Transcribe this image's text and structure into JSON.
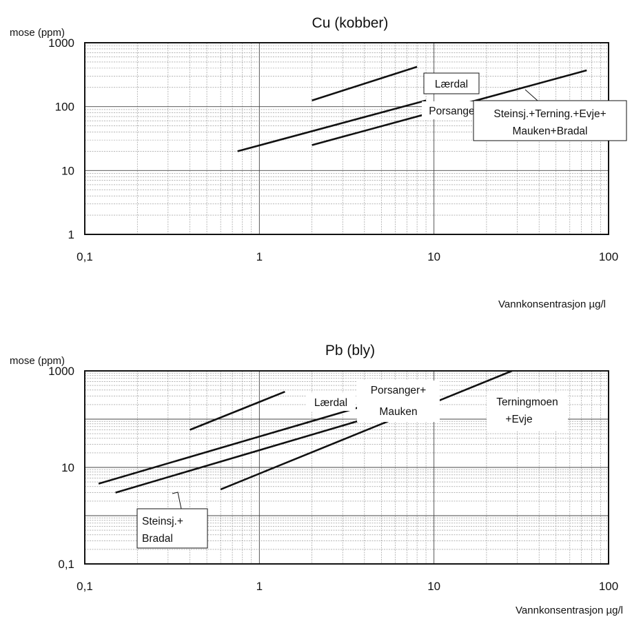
{
  "chart_data": [
    {
      "id": "cu",
      "type": "line",
      "title": "Cu (kobber)",
      "ylabel": "mose (ppm)",
      "xlabel": "Vannkonsentrasjon µg/l",
      "xscale": "log",
      "yscale": "log",
      "xlim": [
        0.1,
        100
      ],
      "ylim": [
        1,
        1000
      ],
      "xticks": [
        0.1,
        1,
        10,
        100
      ],
      "xticklabels": [
        "0,1",
        "1",
        "10",
        "100"
      ],
      "yticks": [
        1,
        10,
        100,
        1000
      ],
      "yticklabels": [
        "1",
        "10",
        "100",
        "1000"
      ],
      "grid": true,
      "series": [
        {
          "name": "Lærdal",
          "x": [
            2,
            8
          ],
          "y": [
            125,
            420
          ]
        },
        {
          "name": "Porsanger",
          "x": [
            0.75,
            9
          ],
          "y": [
            20,
            125
          ]
        },
        {
          "name": "Steinsj.+Terning.+Evje+Mauken+Bradal",
          "x": [
            2,
            75
          ],
          "y": [
            25,
            370
          ]
        }
      ],
      "annotations": [
        {
          "series": "Lærdal",
          "text": [
            "Lærdal"
          ]
        },
        {
          "series": "Porsanger",
          "text": [
            "Porsanger"
          ]
        },
        {
          "series": "Steinsj.+Terning.+Evje+Mauken+Bradal",
          "text": [
            "Steinsj.+Terning.+Evje+",
            "Mauken+Bradal"
          ]
        }
      ]
    },
    {
      "id": "pb",
      "type": "line",
      "title": "Pb (bly)",
      "ylabel": "mose (ppm)",
      "xlabel": "Vannkonsentrasjon µg/l",
      "xscale": "log",
      "yscale": "log",
      "xlim": [
        0.1,
        100
      ],
      "ylim": [
        0.1,
        1000
      ],
      "xticks": [
        0.1,
        1,
        10,
        100
      ],
      "xticklabels": [
        "0,1",
        "1",
        "10",
        "100"
      ],
      "yticks": [
        0.1,
        10,
        1000
      ],
      "yticklabels": [
        "0,1",
        "10",
        "1000"
      ],
      "grid": true,
      "series": [
        {
          "name": "Lærdal",
          "x": [
            0.4,
            1.4
          ],
          "y": [
            60,
            370
          ]
        },
        {
          "name": "Porsanger+Mauken",
          "x": [
            0.12,
            4
          ],
          "y": [
            4.6,
            190
          ]
        },
        {
          "name": "Steinsj.+Bradal",
          "x": [
            0.15,
            4
          ],
          "y": [
            3,
            100
          ]
        },
        {
          "name": "Terningmoen+Evje",
          "x": [
            0.6,
            28
          ],
          "y": [
            3.5,
            1000
          ]
        }
      ],
      "annotations": [
        {
          "series": "Lærdal",
          "text": [
            "Lærdal"
          ]
        },
        {
          "series": "Porsanger+Mauken",
          "text": [
            "Porsanger+",
            "Mauken"
          ]
        },
        {
          "series": "Terningmoen+Evje",
          "text": [
            "Terningmoen",
            "+Evje"
          ]
        },
        {
          "series": "Steinsj.+Bradal",
          "text": [
            "Steinsj.+",
            "Bradal"
          ]
        }
      ]
    }
  ]
}
